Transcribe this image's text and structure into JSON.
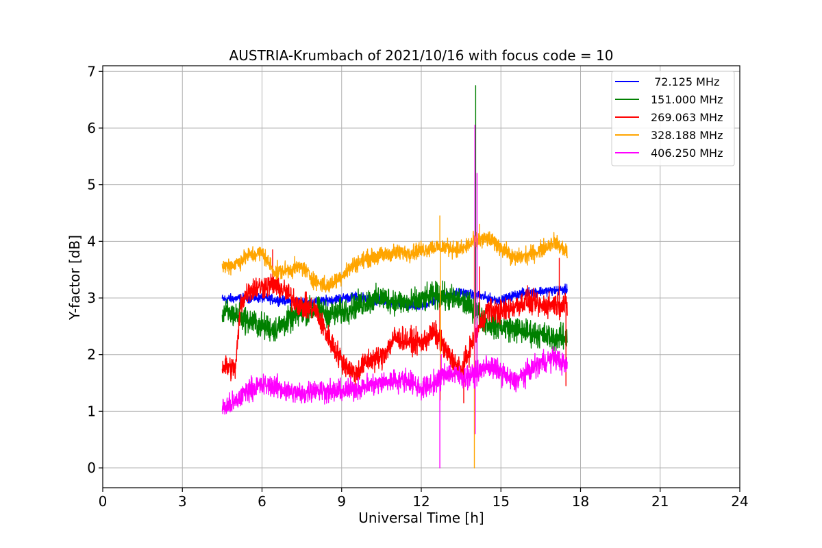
{
  "chart_data": {
    "type": "line",
    "title": "AUSTRIA-Krumbach of 2021/10/16 with focus code = 10",
    "xlabel": "Universal Time [h]",
    "ylabel": "Y-factor [dB]",
    "xlim": [
      0,
      24
    ],
    "ylim": [
      -0.35,
      7.1
    ],
    "xticks": [
      "0",
      "3",
      "6",
      "9",
      "12",
      "15",
      "18",
      "21",
      "24"
    ],
    "yticks": [
      "0",
      "1",
      "2",
      "3",
      "4",
      "5",
      "6",
      "7"
    ],
    "grid": true,
    "legend_position": "top-right",
    "series": [
      {
        "name": " 72.125 MHz",
        "color": "#0000ff",
        "x": [
          4.5,
          5,
          5.5,
          6,
          6.5,
          7,
          7.5,
          8,
          8.5,
          9,
          9.5,
          10,
          10.5,
          11,
          11.5,
          12,
          12.5,
          13,
          13.5,
          14,
          14.5,
          15,
          15.5,
          16,
          16.5,
          17,
          17.5
        ],
        "y": [
          2.98,
          2.99,
          3.0,
          3.0,
          2.97,
          2.95,
          2.93,
          2.92,
          2.96,
          3.0,
          3.02,
          3.0,
          2.95,
          2.9,
          2.85,
          2.85,
          2.95,
          3.05,
          3.1,
          3.05,
          3.0,
          2.95,
          3.05,
          3.1,
          3.12,
          3.13,
          3.15
        ],
        "noise": 0.05,
        "spikes": []
      },
      {
        "name": "151.000 MHz",
        "color": "#008000",
        "x": [
          4.5,
          5,
          5.5,
          6,
          6.5,
          7,
          7.5,
          8,
          8.5,
          9,
          9.5,
          10,
          10.5,
          11,
          11.5,
          12,
          12.5,
          13,
          13.5,
          14,
          14.5,
          15,
          15.5,
          16,
          16.5,
          17,
          17.5
        ],
        "y": [
          2.75,
          2.7,
          2.6,
          2.5,
          2.45,
          2.6,
          2.75,
          2.8,
          2.7,
          2.75,
          2.85,
          2.95,
          3.0,
          2.95,
          2.9,
          2.95,
          3.05,
          3.0,
          2.95,
          2.8,
          2.55,
          2.5,
          2.45,
          2.4,
          2.35,
          2.3,
          2.3
        ],
        "noise": 0.14,
        "spikes": [
          [
            12.8,
            3.3
          ],
          [
            14.05,
            6.75
          ],
          [
            14.1,
            1.75
          ]
        ]
      },
      {
        "name": "269.063 MHz",
        "color": "#ff0000",
        "x": [
          4.5,
          5,
          5.2,
          5.5,
          6,
          6.5,
          7,
          7.5,
          8,
          8.5,
          9,
          9.5,
          10,
          10.5,
          11,
          11.5,
          12,
          12.5,
          13,
          13.5,
          14,
          14.5,
          15,
          15.5,
          16,
          16.5,
          17,
          17.5
        ],
        "y": [
          1.8,
          1.75,
          2.9,
          3.15,
          3.2,
          3.25,
          3.05,
          2.85,
          2.8,
          2.3,
          1.9,
          1.65,
          1.9,
          1.95,
          2.3,
          2.25,
          2.2,
          2.4,
          2.0,
          1.7,
          2.3,
          2.8,
          2.75,
          2.85,
          2.95,
          2.85,
          2.9,
          2.85
        ],
        "noise": 0.13,
        "spikes": [
          [
            6.4,
            3.85
          ],
          [
            12.7,
            2.9
          ],
          [
            13.6,
            1.15
          ],
          [
            14.2,
            3.55
          ],
          [
            17.2,
            3.7
          ],
          [
            17.45,
            1.45
          ]
        ]
      },
      {
        "name": "328.188 MHz",
        "color": "#ffa500",
        "x": [
          4.5,
          5,
          5.5,
          6,
          6.5,
          7,
          7.5,
          8,
          8.5,
          9,
          9.5,
          10,
          10.5,
          11,
          11.5,
          12,
          12.5,
          13,
          13.5,
          14,
          14.5,
          15,
          15.5,
          16,
          16.5,
          17,
          17.5
        ],
        "y": [
          3.55,
          3.6,
          3.75,
          3.8,
          3.45,
          3.5,
          3.55,
          3.3,
          3.2,
          3.4,
          3.6,
          3.7,
          3.75,
          3.8,
          3.8,
          3.85,
          3.9,
          3.9,
          3.85,
          4.0,
          4.05,
          3.9,
          3.7,
          3.75,
          3.85,
          4.0,
          3.8
        ],
        "noise": 0.09,
        "spikes": [
          [
            12.7,
            4.45
          ],
          [
            12.72,
            1.2
          ],
          [
            14.0,
            0.0
          ],
          [
            14.05,
            4.0
          ],
          [
            14.2,
            4.3
          ]
        ]
      },
      {
        "name": "406.250 MHz",
        "color": "#ff00ff",
        "x": [
          4.5,
          5,
          5.5,
          6,
          6.5,
          7,
          7.5,
          8,
          8.5,
          9,
          9.5,
          10,
          10.5,
          11,
          11.5,
          12,
          12.5,
          13,
          13.5,
          14,
          14.5,
          15,
          15.5,
          16,
          16.5,
          17,
          17.5
        ],
        "y": [
          1.05,
          1.15,
          1.4,
          1.45,
          1.45,
          1.35,
          1.3,
          1.4,
          1.35,
          1.35,
          1.4,
          1.45,
          1.5,
          1.55,
          1.55,
          1.4,
          1.5,
          1.7,
          1.6,
          1.65,
          1.8,
          1.7,
          1.5,
          1.7,
          1.85,
          1.95,
          1.8
        ],
        "noise": 0.12,
        "spikes": [
          [
            12.7,
            0.0
          ],
          [
            12.75,
            2.0
          ],
          [
            14.02,
            6.05
          ],
          [
            14.03,
            0.6
          ],
          [
            14.1,
            5.2
          ]
        ]
      }
    ]
  }
}
